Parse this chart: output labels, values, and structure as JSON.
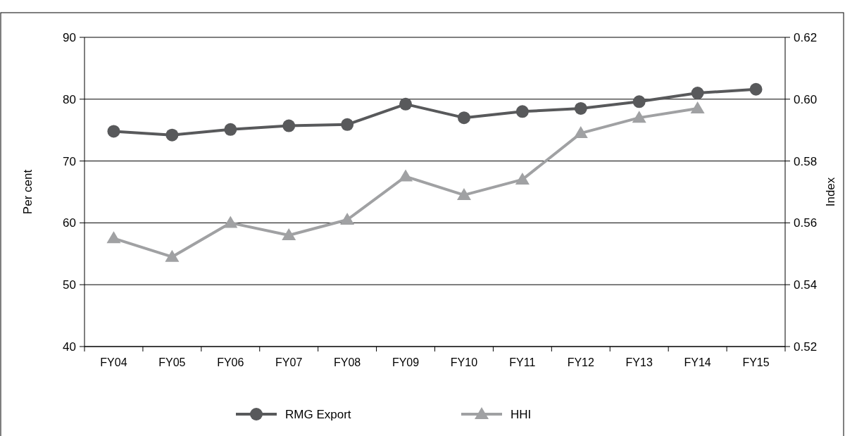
{
  "chart_data": {
    "type": "line",
    "categories": [
      "FY04",
      "FY05",
      "FY06",
      "FY07",
      "FY08",
      "FY09",
      "FY10",
      "FY11",
      "FY12",
      "FY13",
      "FY14",
      "FY15"
    ],
    "series": [
      {
        "name": "RMG Export",
        "color": "#58595b",
        "marker": "circle",
        "values": [
          74.8,
          74.2,
          75.1,
          75.7,
          75.9,
          79.2,
          77.0,
          78.0,
          78.5,
          79.6,
          81.0,
          81.6
        ]
      },
      {
        "name": "HHI",
        "color": "#a0a1a3",
        "marker": "triangle",
        "axis": "y2",
        "values": [
          0.555,
          0.549,
          0.56,
          0.556,
          0.561,
          0.575,
          0.569,
          0.574,
          0.589,
          0.594,
          0.597,
          null
        ]
      }
    ],
    "ylabel": "Per cent",
    "y2label": "Index",
    "ylim": [
      40,
      90
    ],
    "yticks": [
      40,
      50,
      60,
      70,
      80,
      90
    ],
    "y2lim": [
      0.52,
      0.62
    ],
    "y2ticks": [
      0.52,
      0.54,
      0.56,
      0.58,
      {
        "value": 0.6,
        "label": "0.60"
      },
      0.62
    ],
    "grid": "y",
    "legend": "bottom"
  }
}
